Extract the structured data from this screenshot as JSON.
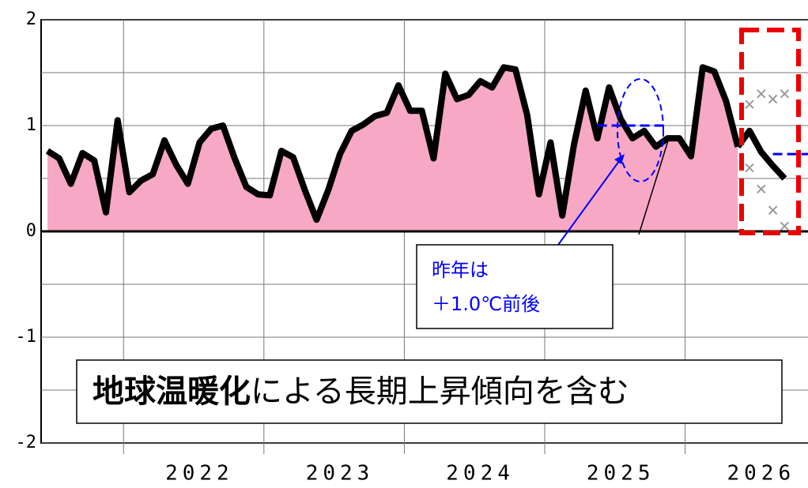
{
  "chart_data": {
    "type": "line",
    "categories": [
      null,
      null,
      null,
      null,
      null,
      null,
      null,
      null,
      null,
      null,
      null,
      null,
      null,
      "2022",
      null,
      null,
      null,
      null,
      null,
      null,
      null,
      null,
      null,
      null,
      null,
      "2023",
      null,
      null,
      null,
      null,
      null,
      null,
      null,
      null,
      null,
      null,
      null,
      "2024",
      null,
      null,
      null,
      null,
      null,
      null,
      null,
      null,
      null,
      null,
      null,
      "2025",
      null,
      null,
      null,
      null,
      null,
      null,
      null,
      null,
      null,
      null,
      null,
      "2026",
      null,
      null,
      null,
      null
    ],
    "series": [
      {
        "color": "#000000",
        "fill": "#f7a8c4",
        "values": [
          0.76,
          0.69,
          0.45,
          0.74,
          0.67,
          0.18,
          1.05,
          0.37,
          0.48,
          0.54,
          0.86,
          0.63,
          0.45,
          0.84,
          0.97,
          1.0,
          0.69,
          0.42,
          0.35,
          0.34,
          0.76,
          0.7,
          0.39,
          0.11,
          0.39,
          0.73,
          0.95,
          1.01,
          1.09,
          1.12,
          1.38,
          1.14,
          1.14,
          0.69,
          1.49,
          1.25,
          1.29,
          1.42,
          1.36,
          1.55,
          1.53,
          1.1,
          0.35,
          0.84,
          0.15,
          0.82,
          1.33,
          0.88,
          1.36,
          1.06,
          0.88,
          0.95,
          0.8,
          0.88,
          0.88,
          0.71,
          1.55,
          1.51,
          1.23,
          0.8,
          null,
          null,
          null,
          null,
          null,
          null
        ]
      },
      {
        "color": "#000000",
        "values": [
          null,
          null,
          null,
          null,
          null,
          null,
          null,
          null,
          null,
          null,
          null,
          null,
          null,
          null,
          null,
          null,
          null,
          null,
          null,
          null,
          null,
          null,
          null,
          null,
          null,
          null,
          null,
          null,
          null,
          null,
          null,
          null,
          null,
          null,
          null,
          null,
          null,
          null,
          null,
          null,
          null,
          null,
          null,
          null,
          null,
          null,
          null,
          null,
          null,
          null,
          null,
          null,
          null,
          null,
          null,
          null,
          null,
          null,
          null,
          0.8,
          0.95,
          0.75,
          0.62,
          0.5,
          null,
          null
        ]
      },
      {
        "color": "#999999",
        "marker": "x",
        "values": [
          null,
          null,
          null,
          null,
          null,
          null,
          null,
          null,
          null,
          null,
          null,
          null,
          null,
          null,
          null,
          null,
          null,
          null,
          null,
          null,
          null,
          null,
          null,
          null,
          null,
          null,
          null,
          null,
          null,
          null,
          null,
          null,
          null,
          null,
          null,
          null,
          null,
          null,
          null,
          null,
          null,
          null,
          null,
          null,
          null,
          null,
          null,
          null,
          null,
          null,
          null,
          null,
          null,
          null,
          null,
          null,
          null,
          null,
          null,
          null,
          1.2,
          1.3,
          1.25,
          1.3,
          null,
          null
        ]
      },
      {
        "color": "#999999",
        "marker": "x",
        "values": [
          null,
          null,
          null,
          null,
          null,
          null,
          null,
          null,
          null,
          null,
          null,
          null,
          null,
          null,
          null,
          null,
          null,
          null,
          null,
          null,
          null,
          null,
          null,
          null,
          null,
          null,
          null,
          null,
          null,
          null,
          null,
          null,
          null,
          null,
          null,
          null,
          null,
          null,
          null,
          null,
          null,
          null,
          null,
          null,
          null,
          null,
          null,
          null,
          null,
          null,
          null,
          null,
          null,
          null,
          null,
          null,
          null,
          null,
          null,
          null,
          0.6,
          0.4,
          0.2,
          0.05,
          null,
          null
        ]
      }
    ],
    "reference_lines": [
      {
        "value": 1.0,
        "color": "#0000ff",
        "x": [
          47,
          53
        ]
      },
      {
        "value": 0.73,
        "color": "#0000ff",
        "x": [
          62,
          65
        ]
      }
    ],
    "ylim": [
      -2,
      2
    ],
    "yticks": [
      -2,
      -1,
      0,
      1,
      2
    ],
    "minor_yticks": [
      -1.5,
      -0.5,
      0.5,
      1.5
    ],
    "grid": true,
    "annotations": {
      "last_year": [
        "昨年は",
        "＋1.0℃前後"
      ],
      "trend_bold": "地球温暖化",
      "trend_rest": "による長期上昇傾向を含む"
    }
  }
}
